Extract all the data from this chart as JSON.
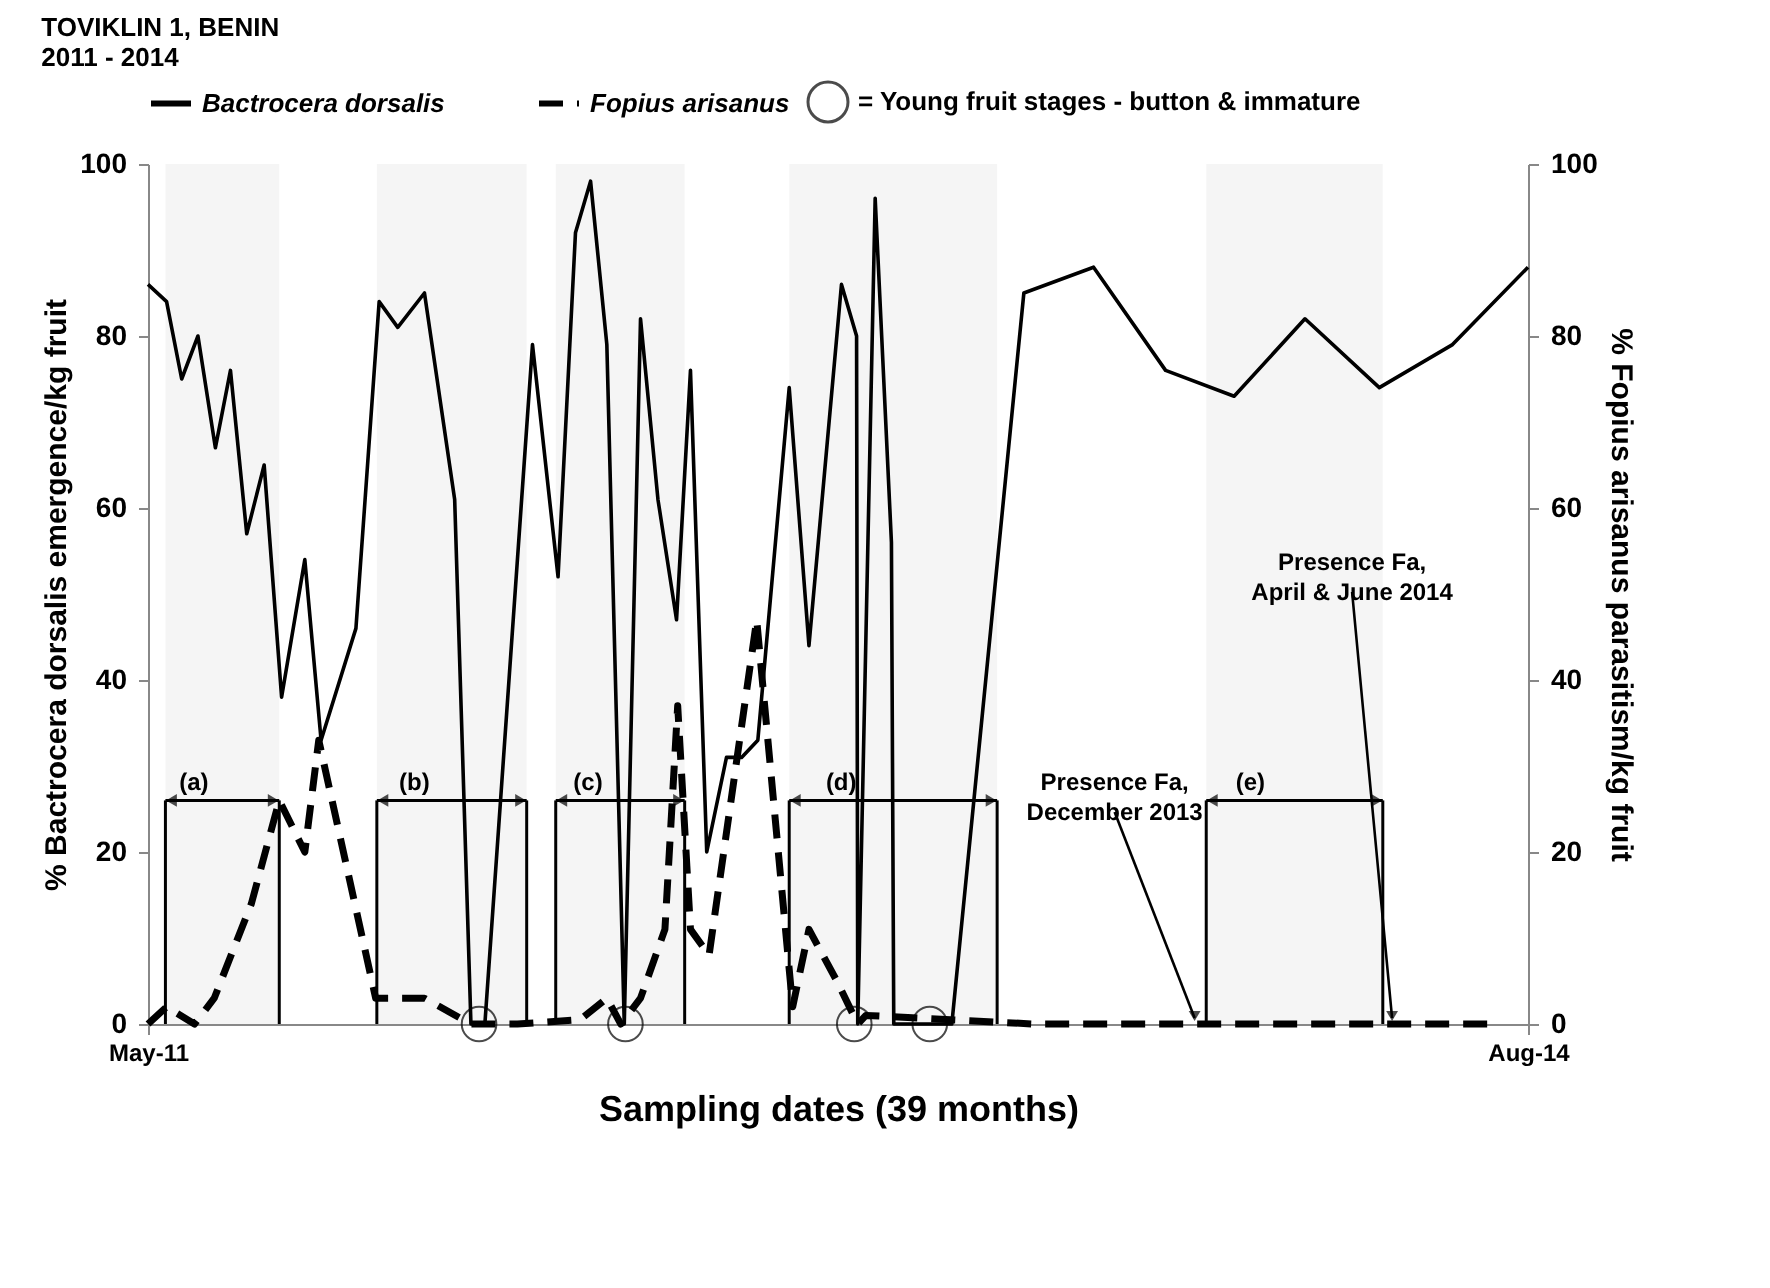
{
  "chart_data": {
    "type": "line",
    "title": "TOVIKLIN 1, BENIN",
    "subtitle": "2011 - 2014",
    "xlabel": "Sampling dates (39 months)",
    "ylabel": "% Bactrocera dorsalis emergence/kg fruit",
    "y2label": "% Fopius arisanus parasitism/kg fruit",
    "xlim": [
      "2011-05-01",
      "2014-08-01"
    ],
    "xticks": [
      {
        "value": "2011-05-01",
        "label": "May-11"
      },
      {
        "value": "2014-08-01",
        "label": "Aug-14"
      }
    ],
    "ylim": [
      0,
      100
    ],
    "yticks": [
      0,
      20,
      40,
      60,
      80,
      100
    ],
    "y2lim": [
      0,
      100
    ],
    "y2ticks": [
      0,
      20,
      40,
      60,
      80,
      100
    ],
    "legend": "top",
    "series": [
      {
        "name": "Bactrocera dorsalis",
        "type": "line",
        "color": "#000000",
        "line_style": "solid",
        "x": [
          "2011-05-01",
          "2011-05-17",
          "2011-05-30",
          "2011-06-13",
          "2011-06-28",
          "2011-07-11",
          "2011-07-25",
          "2011-08-09",
          "2011-08-24",
          "2011-09-13",
          "2011-09-27",
          "2011-10-27",
          "2011-11-16",
          "2011-12-02",
          "2011-12-25",
          "2012-01-20",
          "2012-02-03",
          "2012-02-15",
          "2012-03-27",
          "2012-04-18",
          "2012-05-03",
          "2012-05-16",
          "2012-05-30",
          "2012-06-14",
          "2012-06-28",
          "2012-07-13",
          "2012-07-29",
          "2012-08-10",
          "2012-08-24",
          "2012-09-10",
          "2012-09-23",
          "2012-10-07",
          "2012-11-03",
          "2012-11-20",
          "2012-12-18",
          "2012-12-31",
          "2013-01-01",
          "2013-01-16",
          "2013-01-30",
          "2013-02-01",
          "2013-03-23",
          "2013-05-24",
          "2013-07-23",
          "2013-09-23",
          "2013-11-21",
          "2014-01-21",
          "2014-03-26",
          "2014-05-28",
          "2014-08-01"
        ],
        "values": [
          86,
          84,
          75,
          80,
          67,
          76,
          57,
          65,
          38,
          54,
          33,
          46,
          84,
          81,
          85,
          61,
          0,
          0,
          79,
          52,
          92,
          98,
          79,
          0,
          82,
          61,
          47,
          76,
          20,
          31,
          31,
          33,
          74,
          44,
          86,
          80,
          0,
          96,
          56,
          0,
          0,
          85,
          88,
          76,
          73,
          82,
          74,
          79,
          88
        ]
      },
      {
        "name": "Fopius arisanus",
        "type": "line",
        "axis": "y2",
        "color": "#000000",
        "line_style": "dashed",
        "x": [
          "2011-05-01",
          "2011-05-17",
          "2011-06-10",
          "2011-06-27",
          "2011-07-29",
          "2011-08-22",
          "2011-09-13",
          "2011-09-25",
          "2011-11-13",
          "2011-12-25",
          "2012-02-03",
          "2012-03-14",
          "2012-05-07",
          "2012-05-30",
          "2012-06-11",
          "2012-06-28",
          "2012-07-19",
          "2012-07-30",
          "2012-08-10",
          "2012-08-26",
          "2012-10-06",
          "2012-11-06",
          "2012-11-20",
          "2012-12-14",
          "2013-01-01",
          "2013-01-08",
          "2013-06-01",
          "2013-12-01",
          "2014-07-05"
        ],
        "values": [
          0,
          2,
          0,
          3,
          14,
          26,
          20,
          33,
          3,
          3,
          0,
          0,
          0.5,
          3,
          0,
          3,
          11,
          37,
          11,
          8,
          47,
          2,
          11,
          5,
          0,
          1,
          0,
          0,
          0
        ]
      },
      {
        "name": "= Young fruit stages - button & immature",
        "type": "scatter",
        "marker": "circle",
        "color": "#000000",
        "x": [
          "2012-02-10",
          "2012-06-15",
          "2012-12-29",
          "2013-03-04"
        ],
        "values": [
          0,
          0,
          0,
          0
        ]
      }
    ],
    "bands": [
      {
        "axis": "x",
        "from": "2011-05-16",
        "to": "2011-08-22",
        "label": "(a)"
      },
      {
        "axis": "x",
        "from": "2011-11-14",
        "to": "2012-03-22",
        "label": "(b)"
      },
      {
        "axis": "x",
        "from": "2012-04-16",
        "to": "2012-08-05",
        "label": "(c)"
      },
      {
        "axis": "x",
        "from": "2012-11-03",
        "to": "2013-05-01",
        "label": "(d)"
      },
      {
        "axis": "x",
        "from": "2013-10-28",
        "to": "2014-03-29",
        "label": "(e)"
      }
    ],
    "annotations": [
      {
        "text": "Presence Fa, December 2013",
        "x": "2013-10-18",
        "y": 0
      },
      {
        "text": "Presence Fa,  April & June 2014",
        "x": "2014-04-06",
        "y": 0
      }
    ]
  }
}
